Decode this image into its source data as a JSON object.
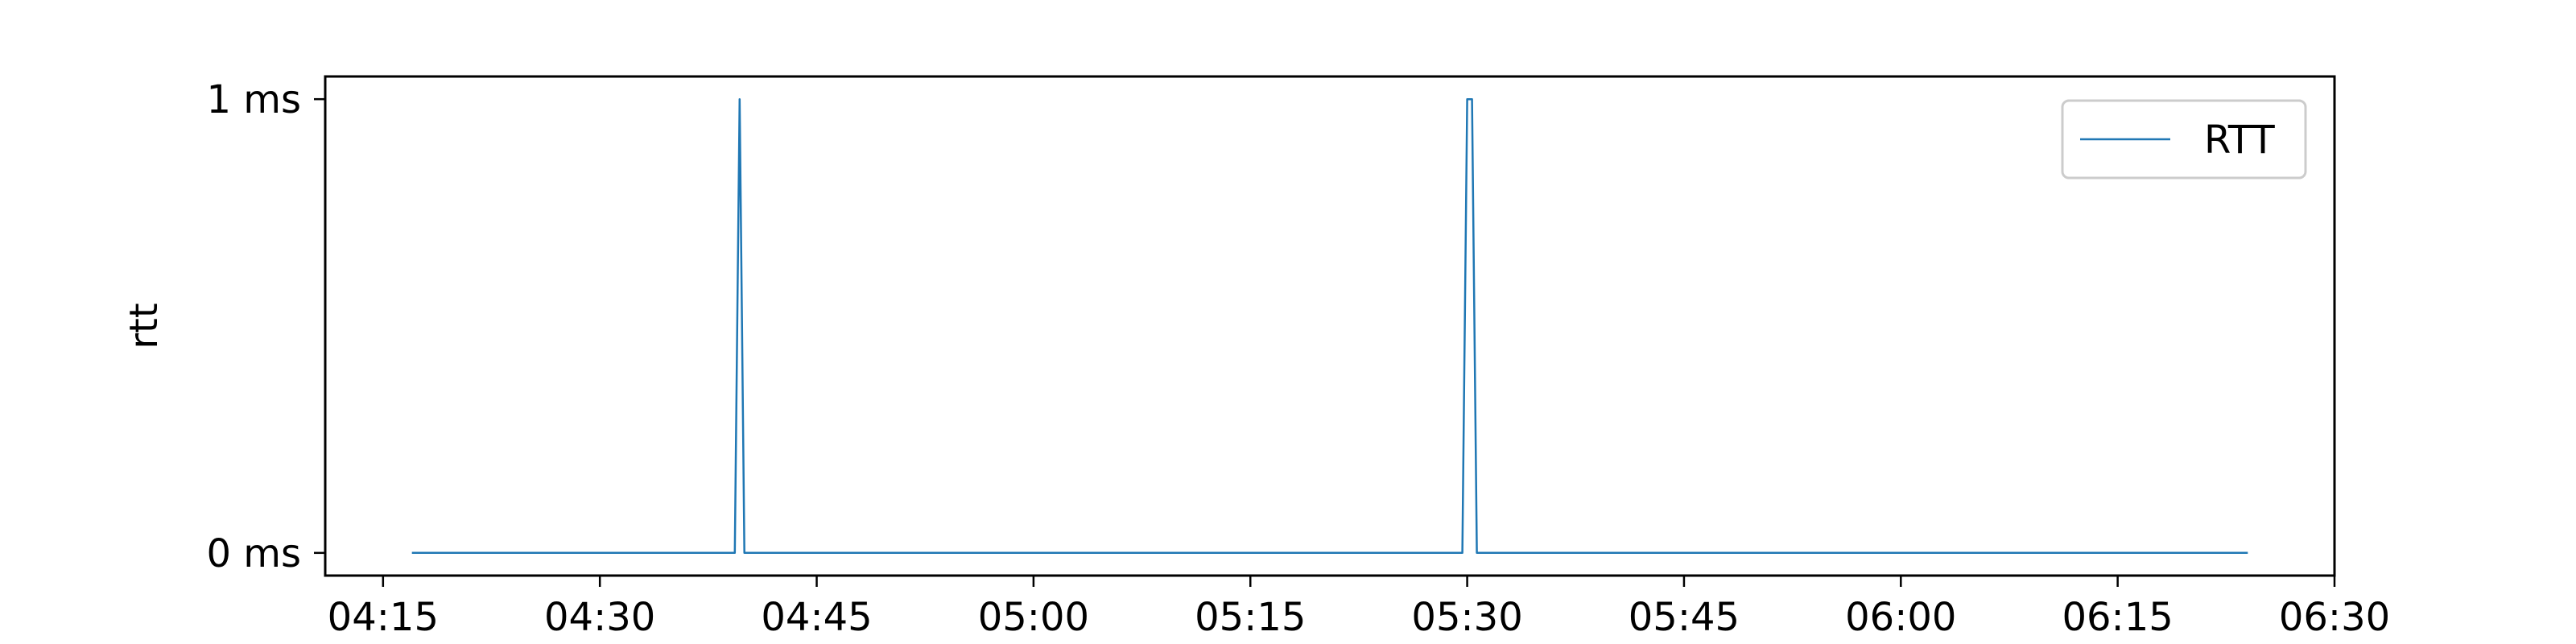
{
  "chart_data": {
    "type": "line",
    "title": "",
    "xlabel": "",
    "ylabel": "rtt",
    "x_ticks": [
      "04:15",
      "04:30",
      "04:45",
      "05:00",
      "05:15",
      "05:30",
      "05:45",
      "06:00",
      "06:15",
      "06:30"
    ],
    "x_tick_minutes": [
      255,
      270,
      285,
      300,
      315,
      330,
      345,
      360,
      375,
      390
    ],
    "y_ticks": [
      {
        "label": "0 ms",
        "value": 0
      },
      {
        "label": "1 ms",
        "value": 1
      }
    ],
    "xlim": [
      "04:11",
      "06:30"
    ],
    "ylim": [
      -0.05,
      1.05
    ],
    "grid": false,
    "legend_position": "top-right",
    "series": [
      {
        "name": "RTT",
        "color": "#1f77b4",
        "x": [
          "04:17",
          "04:39:20",
          "04:39:40",
          "04:40",
          "05:29:40",
          "05:30",
          "05:30:20",
          "05:30:40",
          "06:24"
        ],
        "values": [
          0,
          0,
          1,
          0,
          0,
          1,
          1,
          0,
          0
        ]
      }
    ]
  }
}
